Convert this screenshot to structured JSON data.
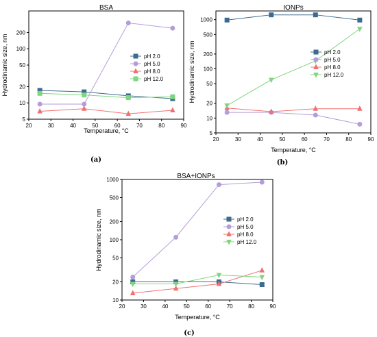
{
  "chart_data": [
    {
      "type": "line",
      "title": "BSA",
      "xlabel": "Temperature, °C",
      "ylabel": "Hydrodinamic size, nm",
      "panel_label": "(a)",
      "x": [
        25,
        45,
        65,
        85
      ],
      "xlim": [
        20,
        90
      ],
      "xticks": [
        20,
        30,
        40,
        50,
        60,
        70,
        80,
        90
      ],
      "yscale": "log",
      "ylim": [
        5,
        500
      ],
      "yticks": [
        5,
        10,
        20,
        50,
        100,
        200
      ],
      "legend_position": "right",
      "series": [
        {
          "name": "pH 2.0",
          "values": [
            17,
            16,
            13.5,
            12
          ],
          "color": "#3d6a8e",
          "marker": "square"
        },
        {
          "name": "pH 5.0",
          "values": [
            9.5,
            9.5,
            300,
            240
          ],
          "color": "#b39ddb",
          "marker": "circle"
        },
        {
          "name": "pH 8.0",
          "values": [
            7,
            7.8,
            6.3,
            7.3
          ],
          "color": "#f07070",
          "marker": "triangle-up"
        },
        {
          "name": "pH 12.0",
          "values": [
            15,
            14,
            12.5,
            13
          ],
          "color": "#7ed67e",
          "marker": "square"
        }
      ]
    },
    {
      "type": "line",
      "title": "IONPs",
      "xlabel": "Temperature, °C",
      "ylabel": "Hydrodinamic size, nm",
      "panel_label": "(b)",
      "x": [
        25,
        45,
        65,
        85
      ],
      "xlim": [
        20,
        90
      ],
      "xticks": [
        20,
        30,
        40,
        50,
        60,
        70,
        80,
        90
      ],
      "yscale": "log",
      "ylim": [
        5,
        1500
      ],
      "yticks": [
        5,
        10,
        20,
        50,
        100,
        200,
        500,
        1000
      ],
      "legend_position": "right",
      "series": [
        {
          "name": "pH 2.0",
          "values": [
            980,
            1250,
            1250,
            980
          ],
          "color": "#3d6a8e",
          "marker": "square"
        },
        {
          "name": "pH 5.0",
          "values": [
            13,
            13,
            11.5,
            7.5
          ],
          "color": "#b39ddb",
          "marker": "circle"
        },
        {
          "name": "pH 8.0",
          "values": [
            16,
            13.5,
            15.5,
            15.5
          ],
          "color": "#f07070",
          "marker": "triangle-up"
        },
        {
          "name": "pH 12.0",
          "values": [
            18,
            60,
            145,
            650
          ],
          "color": "#7ed67e",
          "marker": "triangle-down"
        }
      ]
    },
    {
      "type": "line",
      "title": "BSA+IONPs",
      "xlabel": "Temperature, °C",
      "ylabel": "Hydrodinamic size, nm",
      "panel_label": "(c)",
      "x": [
        25,
        45,
        65,
        85
      ],
      "xlim": [
        20,
        90
      ],
      "xticks": [
        20,
        30,
        40,
        50,
        60,
        70,
        80,
        90
      ],
      "yscale": "log",
      "ylim": [
        10,
        1000
      ],
      "yticks": [
        10,
        20,
        50,
        100,
        200,
        500,
        1000
      ],
      "legend_position": "right",
      "series": [
        {
          "name": "pH 2.0",
          "values": [
            20,
            20,
            20,
            18
          ],
          "color": "#3d6a8e",
          "marker": "square"
        },
        {
          "name": "pH 5.0",
          "values": [
            24,
            110,
            820,
            900
          ],
          "color": "#b39ddb",
          "marker": "circle"
        },
        {
          "name": "pH 8.0",
          "values": [
            13,
            15.5,
            18.5,
            31
          ],
          "color": "#f07070",
          "marker": "triangle-up"
        },
        {
          "name": "pH 12.0",
          "values": [
            18.5,
            18.5,
            26,
            24
          ],
          "color": "#7ed67e",
          "marker": "triangle-down"
        }
      ]
    }
  ]
}
